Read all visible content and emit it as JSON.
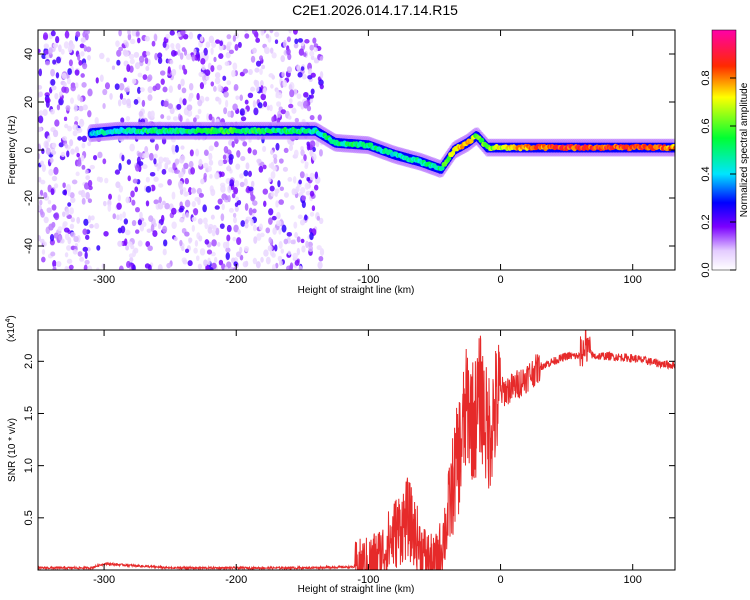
{
  "title": "C2E1.2026.014.17.14.R15",
  "chart_data": [
    {
      "type": "heatmap",
      "xlabel": "Height of straight line (km)",
      "ylabel": "Frequency (Hz)",
      "xlim": [
        -350,
        132
      ],
      "ylim": [
        -50,
        50
      ],
      "xticks": [
        -300,
        -200,
        -100,
        0,
        100
      ],
      "yticks": [
        -40,
        -20,
        0,
        20,
        40
      ],
      "colorbar": {
        "label": "Normalized spectral amplitude",
        "range": [
          0,
          1
        ],
        "ticks": [
          "0.0",
          "0.2",
          "0.4",
          "0.6",
          "0.8"
        ],
        "colors": [
          "#ffffff",
          "#e0c8ff",
          "#7b00ff",
          "#0000ff",
          "#00e5ff",
          "#00ff33",
          "#ffff00",
          "#ff2a00",
          "#ff00a8"
        ]
      },
      "dominant_line": {
        "x": [
          -310,
          -290,
          -260,
          -230,
          -200,
          -170,
          -140,
          -125,
          -100,
          -80,
          -60,
          -45,
          -35,
          -25,
          -18,
          -10,
          0,
          20,
          50,
          80,
          100,
          132
        ],
        "y": [
          7,
          8,
          8,
          8,
          8,
          8,
          8,
          3,
          2,
          -2,
          -5,
          -8,
          0,
          3,
          6,
          1,
          1,
          1,
          1,
          1,
          1,
          1
        ],
        "amplitude": [
          0.4,
          0.45,
          0.5,
          0.5,
          0.55,
          0.5,
          0.45,
          0.5,
          0.5,
          0.45,
          0.45,
          0.5,
          0.7,
          0.8,
          0.6,
          0.6,
          0.7,
          0.8,
          0.85,
          0.85,
          0.85,
          0.8
        ]
      }
    },
    {
      "type": "line",
      "xlabel": "Height of straight line (km)",
      "ylabel": "SNR (10 * v/v)",
      "yscale_label": "(x10",
      "yscale_exp": "4",
      "xlim": [
        -350,
        132
      ],
      "ylim": [
        0,
        2.3
      ],
      "xticks": [
        -300,
        -200,
        -100,
        0,
        100
      ],
      "yticks": [
        "0.5",
        "1.0",
        "1.5",
        "2.0"
      ],
      "series": [
        {
          "name": "SNR",
          "color": "#e62a2a",
          "x": [
            -350,
            -310,
            -300,
            -250,
            -200,
            -150,
            -110,
            -100,
            -90,
            -80,
            -70,
            -60,
            -55,
            -50,
            -45,
            -40,
            -35,
            -30,
            -25,
            -20,
            -15,
            -10,
            -5,
            0,
            10,
            20,
            30,
            40,
            50,
            60,
            64,
            70,
            80,
            100,
            120,
            132
          ],
          "y": [
            0.02,
            0.02,
            0.06,
            0.02,
            0.02,
            0.02,
            0.03,
            0.06,
            0.15,
            0.35,
            0.5,
            0.2,
            0.1,
            0.05,
            0.2,
            0.5,
            0.9,
            1.2,
            1.6,
            1.4,
            1.7,
            1.3,
            1.5,
            1.7,
            1.75,
            1.85,
            1.95,
            2.0,
            2.05,
            2.05,
            2.15,
            2.05,
            2.05,
            2.03,
            1.98,
            1.96
          ]
        }
      ]
    }
  ]
}
